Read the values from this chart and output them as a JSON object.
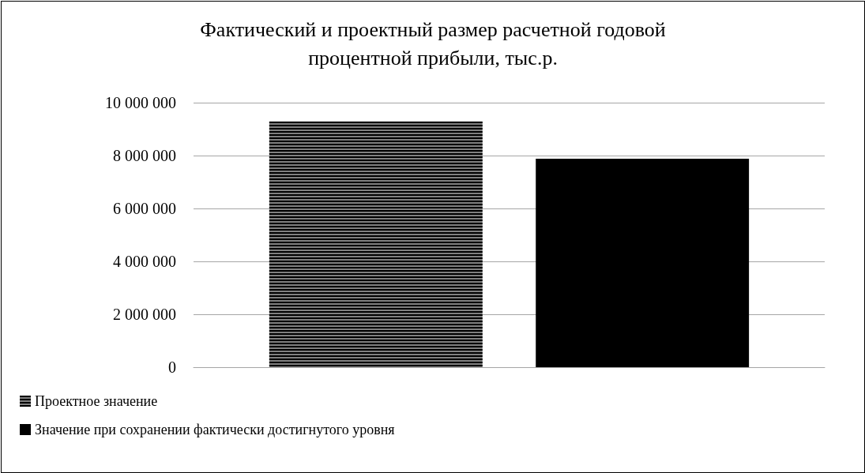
{
  "chart_data": {
    "type": "bar",
    "title": "Фактический и проектный размер расчетной годовой\nпроцентной прибыли, тыс.р.",
    "categories": [
      null
    ],
    "series": [
      {
        "name": "Проектное значение",
        "color": "#808080",
        "values": [
          9290000
        ]
      },
      {
        "name": "Значение при сохранении фактически достигнутого уровня",
        "color": "#000000",
        "values": [
          7880000
        ]
      }
    ],
    "ylim": [
      0,
      10000000
    ],
    "yticks": [
      0,
      2000000,
      4000000,
      6000000,
      8000000,
      10000000
    ],
    "grid": "y",
    "legend": "bottom left"
  }
}
